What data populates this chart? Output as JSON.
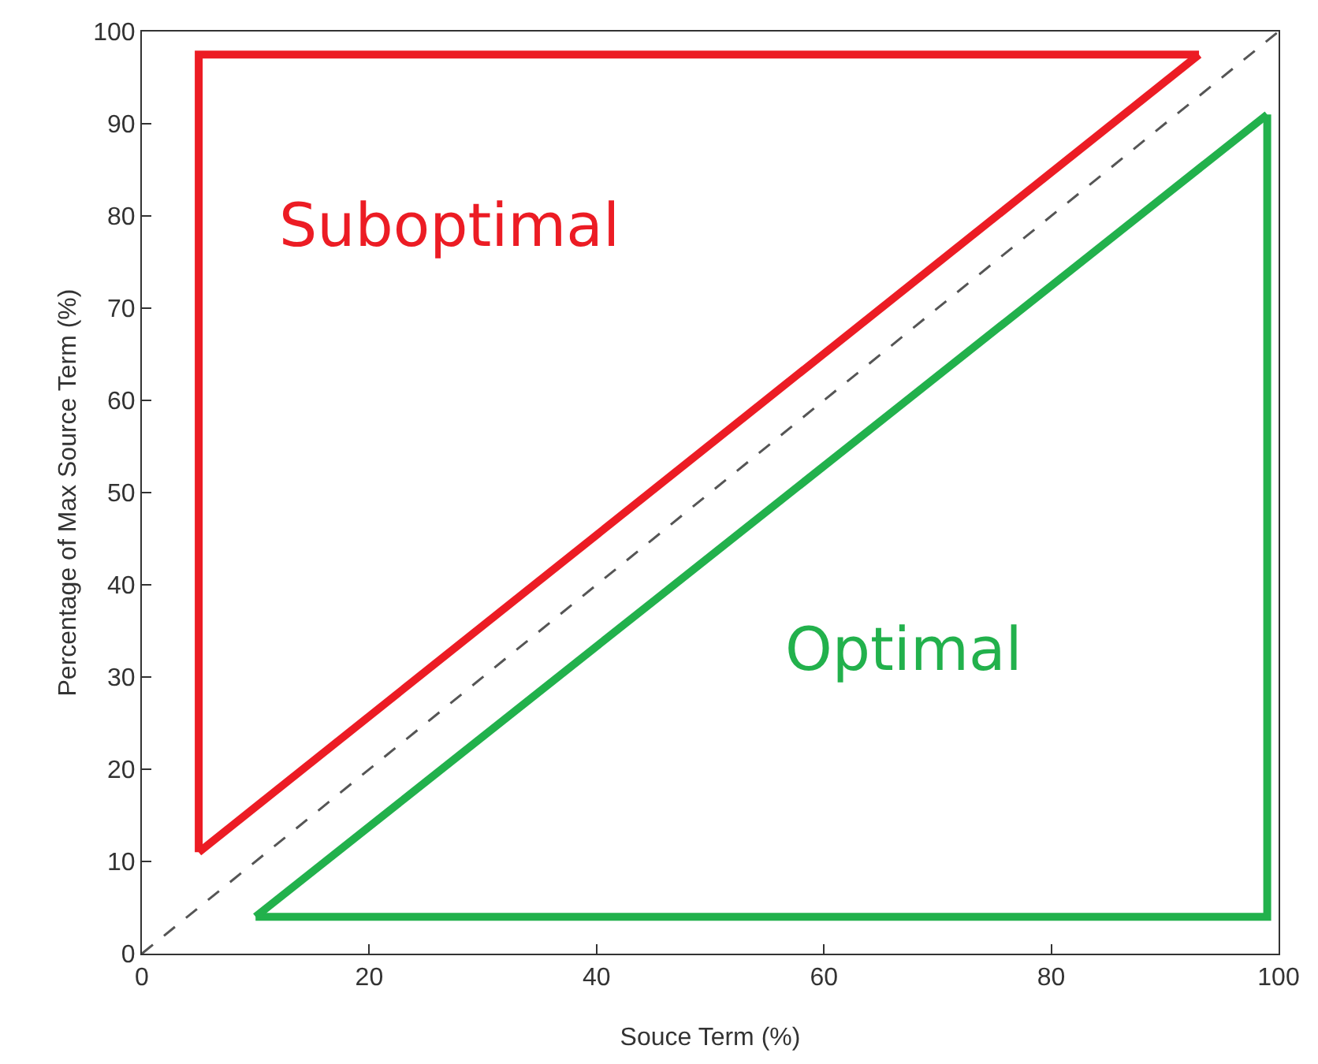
{
  "chart_data": {
    "type": "line",
    "xlabel": "Souce Term (%)",
    "ylabel": "Percentage of Max Source Term (%)",
    "series": [
      {
        "color": "#ec1c24",
        "x": [
          5,
          5,
          93
        ],
        "values": [
          11,
          97.5,
          97.5
        ]
      },
      {
        "color": "#22b14c",
        "x": [
          10,
          99,
          99
        ],
        "values": [
          4,
          4,
          91
        ]
      },
      {
        "color": "#ec1c24",
        "x": [
          5,
          93
        ],
        "values": [
          11,
          97.5
        ]
      },
      {
        "color": "#22b14c",
        "x": [
          10,
          99
        ],
        "values": [
          4,
          91
        ]
      },
      {
        "color": "#555555",
        "x": [
          0,
          100
        ],
        "values": [
          0,
          100
        ],
        "line_style": "dashed"
      }
    ],
    "annotations": [
      "Suboptimal",
      "Optimal"
    ],
    "xlim": [
      0,
      100
    ],
    "xticks": [
      0,
      20,
      40,
      60,
      80,
      100
    ],
    "ylim": [
      0,
      100
    ],
    "yticks": [
      0,
      10,
      20,
      30,
      40,
      50,
      60,
      70,
      80,
      90,
      100
    ],
    "grid": false,
    "marker": "none",
    "line_style": "solid"
  }
}
